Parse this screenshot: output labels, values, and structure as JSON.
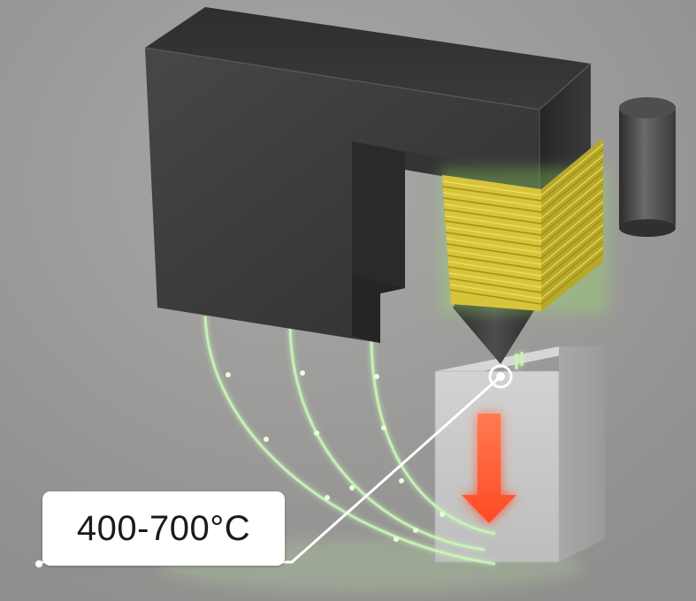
{
  "callout": {
    "temperature_text": "400-700°C"
  },
  "colors": {
    "background": "#9a9997",
    "magnet_body": "#3f3f3f",
    "coil": "#e2cc3a",
    "field_lines": "#c9f5b8",
    "workpiece": "#c4c4c4",
    "arrow": "#ff5a36",
    "callout_bg": "#ffffff"
  },
  "icons": {
    "direction_arrow": "arrow-down-icon",
    "target_marker": "target-ring-icon"
  }
}
